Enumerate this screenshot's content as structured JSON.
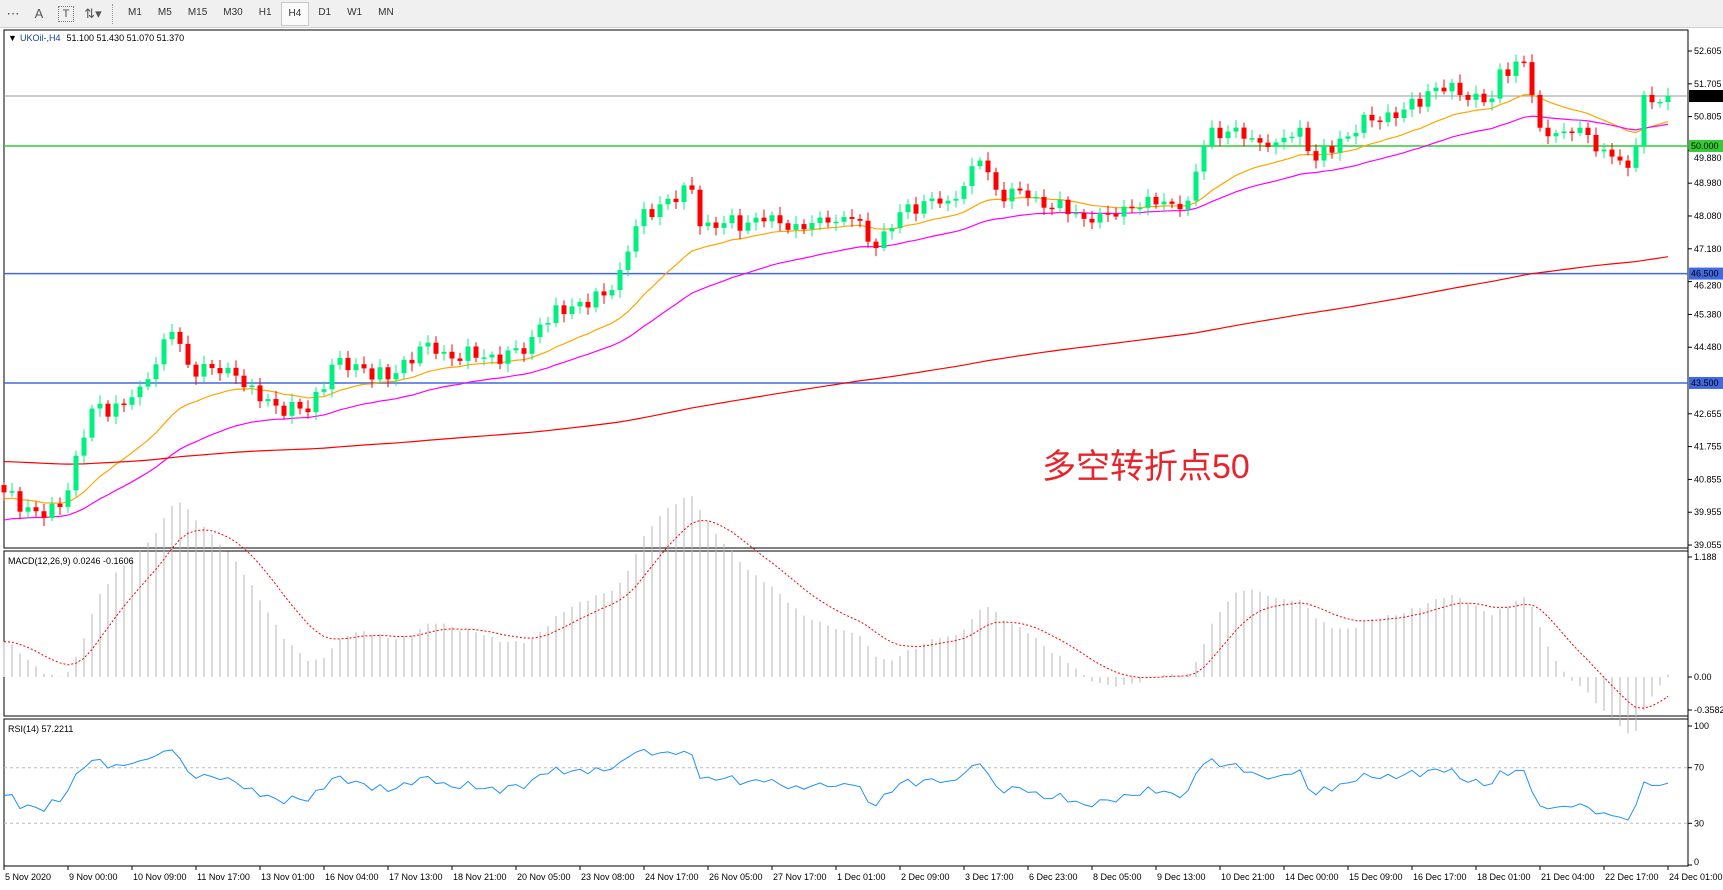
{
  "toolbar": {
    "tools": [
      {
        "icon": "fibonacci-fan-icon",
        "glyph": "⋯"
      },
      {
        "icon": "text-icon",
        "glyph": "A"
      },
      {
        "icon": "text-label-icon",
        "glyph": "T"
      },
      {
        "icon": "arrows-icon",
        "glyph": "⇅▾"
      }
    ],
    "timeframes": [
      "M1",
      "M5",
      "M15",
      "M30",
      "H1",
      "H4",
      "D1",
      "W1",
      "MN"
    ],
    "active_timeframe": "H4"
  },
  "main": {
    "header_symbol": "UKOil-,H4",
    "header_ohlc": "51.100 51.430 51.070 51.370",
    "annotation": "多空转折点50",
    "price_labels": [
      "52.605",
      "51.705",
      "50.805",
      "49.880",
      "48.980",
      "48.080",
      "47.180",
      "46.280",
      "45.380",
      "44.480",
      "42.655",
      "41.755",
      "40.855",
      "39.955",
      "39.055"
    ],
    "current_price": "51.370",
    "levels": [
      {
        "value": "50.000",
        "color": "#33cc33"
      },
      {
        "value": "46.500",
        "color": "#4169e1"
      },
      {
        "value": "43.500",
        "color": "#4169e1"
      }
    ]
  },
  "macd": {
    "label": "MACD(12,26,9) 0.0246 -0.1606",
    "axis": [
      "1.188",
      "0.00",
      "-0.3582"
    ]
  },
  "rsi": {
    "label": "RSI(14) 57.2211",
    "axis": [
      "100",
      "70",
      "30",
      "0"
    ]
  },
  "time_labels": [
    "5 Nov 2020",
    "9 Nov 00:00",
    "10 Nov 09:00",
    "11 Nov 17:00",
    "13 Nov 01:00",
    "16 Nov 04:00",
    "17 Nov 13:00",
    "18 Nov 21:00",
    "20 Nov 05:00",
    "23 Nov 08:00",
    "24 Nov 17:00",
    "26 Nov 05:00",
    "27 Nov 17:00",
    "1 Dec 01:00",
    "2 Dec 09:00",
    "3 Dec 17:00",
    "6 Dec 23:00",
    "8 Dec 05:00",
    "9 Dec 13:00",
    "10 Dec 21:00",
    "14 Dec 00:00",
    "15 Dec 09:00",
    "16 Dec 17:00",
    "18 Dec 01:00",
    "21 Dec 04:00",
    "22 Dec 17:00",
    "24 Dec 01:00"
  ],
  "colors": {
    "bull": "#00f080",
    "bear": "#ff0000",
    "ma_fast": "#ffa500",
    "ma_mid": "#ff00ff",
    "ma_slow": "#ff0000",
    "macd_hist": "#b4b4b4",
    "macd_signal": "#ff0000",
    "rsi": "#1e90ff"
  },
  "chart_data": {
    "type": "candlestick",
    "symbol": "UKOil-",
    "timeframe": "H4",
    "price_range": [
      39.055,
      52.605
    ],
    "close_path_by_bar": [
      [
        0,
        40.5
      ],
      [
        5,
        39.8
      ],
      [
        7,
        40.1
      ],
      [
        10,
        42.0
      ],
      [
        11,
        42.8
      ],
      [
        15,
        42.9
      ],
      [
        17,
        43.4
      ],
      [
        21,
        44.9
      ],
      [
        23,
        44.0
      ],
      [
        29,
        43.7
      ],
      [
        32,
        43.0
      ],
      [
        38,
        42.7
      ],
      [
        41,
        44.0
      ],
      [
        45,
        43.9
      ],
      [
        48,
        43.6
      ],
      [
        52,
        44.5
      ],
      [
        54,
        44.3
      ],
      [
        60,
        44.2
      ],
      [
        65,
        44.3
      ],
      [
        67,
        45.1
      ],
      [
        71,
        45.6
      ],
      [
        75,
        45.9
      ],
      [
        77,
        46.6
      ],
      [
        79,
        47.8
      ],
      [
        82,
        48.4
      ],
      [
        86,
        48.8
      ],
      [
        87,
        47.8
      ],
      [
        93,
        47.9
      ],
      [
        96,
        48.1
      ],
      [
        98,
        47.7
      ],
      [
        103,
        47.9
      ],
      [
        106,
        48.0
      ],
      [
        109,
        47.2
      ],
      [
        113,
        48.4
      ],
      [
        118,
        48.5
      ],
      [
        120,
        48.9
      ],
      [
        122,
        49.6
      ],
      [
        124,
        48.8
      ],
      [
        129,
        48.6
      ],
      [
        136,
        47.9
      ],
      [
        141,
        48.3
      ],
      [
        144,
        48.4
      ],
      [
        148,
        48.5
      ],
      [
        150,
        50.0
      ],
      [
        151,
        50.5
      ],
      [
        155,
        50.2
      ],
      [
        159,
        50.1
      ],
      [
        162,
        50.5
      ],
      [
        164,
        49.6
      ],
      [
        167,
        50.2
      ],
      [
        171,
        50.7
      ],
      [
        175,
        51.0
      ],
      [
        179,
        51.6
      ],
      [
        182,
        51.4
      ],
      [
        186,
        51.3
      ],
      [
        187,
        52.1
      ],
      [
        190,
        52.3
      ],
      [
        191,
        51.4
      ],
      [
        192,
        50.5
      ],
      [
        195,
        50.4
      ],
      [
        197,
        50.5
      ],
      [
        200,
        49.9
      ],
      [
        203,
        49.4
      ],
      [
        204,
        50.0
      ],
      [
        205,
        51.4
      ],
      [
        206,
        51.2
      ],
      [
        208,
        51.37
      ]
    ],
    "macd_range": [
      -0.3582,
      1.188
    ],
    "rsi_range": [
      0,
      100
    ],
    "rsi_levels": [
      30,
      70
    ]
  }
}
